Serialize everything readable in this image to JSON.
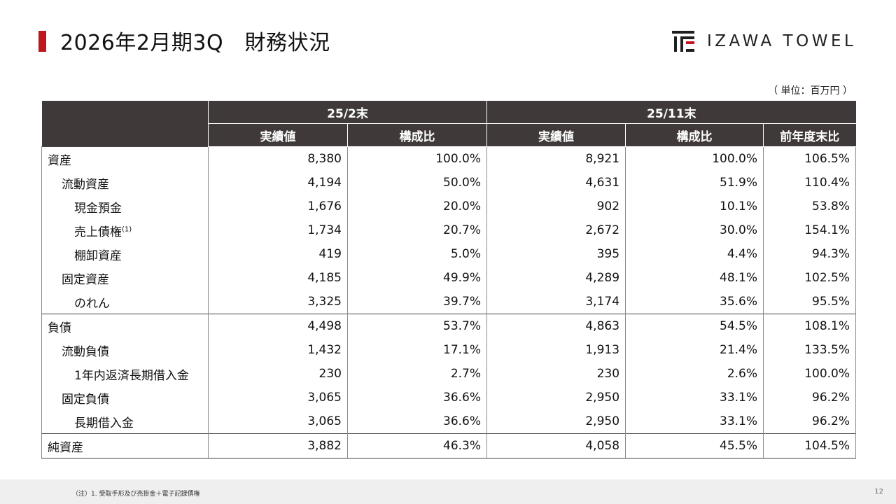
{
  "header": {
    "title": "2026年2月期3Q　財務状況",
    "logo_text": "IZAWA TOWEL",
    "accent_color": "#c0161e"
  },
  "unit": "（ 単位：百万円 ）",
  "table": {
    "period_headers": [
      "25/2末",
      "25/11末"
    ],
    "column_headers": [
      "実績値",
      "構成比",
      "実績値",
      "構成比",
      "前年度末比"
    ],
    "rows": [
      {
        "label": "資産",
        "level": 0,
        "values": [
          "8,380",
          "100.0%",
          "8,921",
          "100.0%",
          "106.5%"
        ]
      },
      {
        "label": "流動資産",
        "level": 1,
        "values": [
          "4,194",
          "50.0%",
          "4,631",
          "51.9%",
          "110.4%"
        ]
      },
      {
        "label": "現金預金",
        "level": 2,
        "values": [
          "1,676",
          "20.0%",
          "902",
          "10.1%",
          "53.8%"
        ]
      },
      {
        "label": "売上債権",
        "note": "(1)",
        "level": 2,
        "values": [
          "1,734",
          "20.7%",
          "2,672",
          "30.0%",
          "154.1%"
        ]
      },
      {
        "label": "棚卸資産",
        "level": 2,
        "values": [
          "419",
          "5.0%",
          "395",
          "4.4%",
          "94.3%"
        ]
      },
      {
        "label": "固定資産",
        "level": 1,
        "values": [
          "4,185",
          "49.9%",
          "4,289",
          "48.1%",
          "102.5%"
        ]
      },
      {
        "label": "のれん",
        "level": 2,
        "values": [
          "3,325",
          "39.7%",
          "3,174",
          "35.6%",
          "95.5%"
        ]
      },
      {
        "label": "負債",
        "level": 0,
        "values": [
          "4,498",
          "53.7%",
          "4,863",
          "54.5%",
          "108.1%"
        ]
      },
      {
        "label": "流動負債",
        "level": 1,
        "values": [
          "1,432",
          "17.1%",
          "1,913",
          "21.4%",
          "133.5%"
        ]
      },
      {
        "label": "1年内返済長期借入金",
        "level": 2,
        "values": [
          "230",
          "2.7%",
          "230",
          "2.6%",
          "100.0%"
        ]
      },
      {
        "label": "固定負債",
        "level": 1,
        "values": [
          "3,065",
          "36.6%",
          "2,950",
          "33.1%",
          "96.2%"
        ]
      },
      {
        "label": "長期借入金",
        "level": 2,
        "values": [
          "3,065",
          "36.6%",
          "2,950",
          "33.1%",
          "96.2%"
        ]
      },
      {
        "label": "純資産",
        "level": 0,
        "values": [
          "3,882",
          "46.3%",
          "4,058",
          "45.5%",
          "104.5%"
        ]
      }
    ]
  },
  "footer": {
    "footnote": "（注）1. 受取手形及び売掛金＋電子記録債権",
    "page_number": "12"
  }
}
